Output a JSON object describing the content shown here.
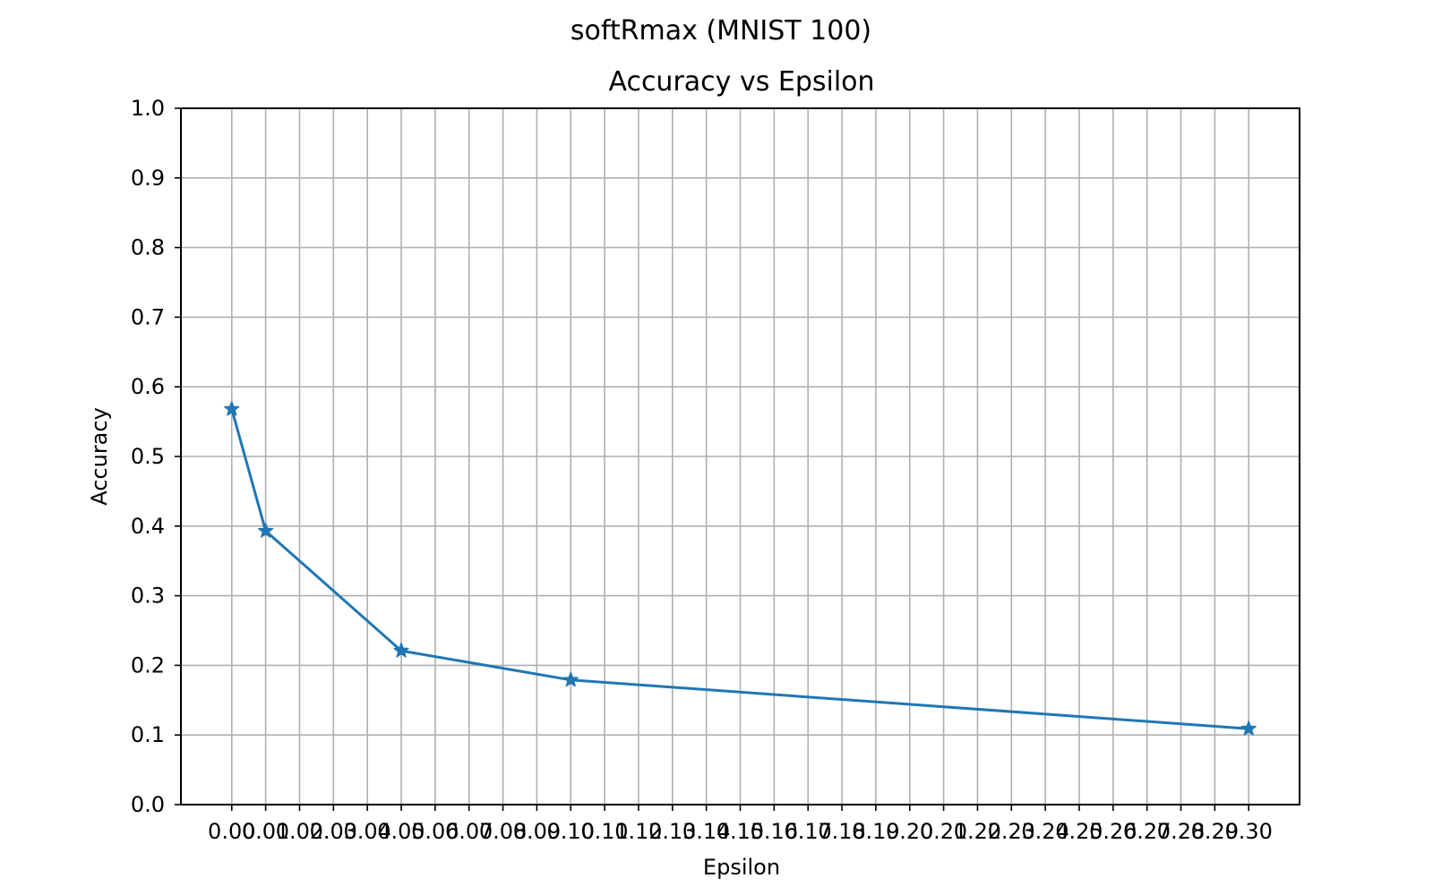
{
  "chart_data": {
    "type": "line",
    "suptitle": "softRmax (MNIST 100)",
    "title": "Accuracy vs Epsilon",
    "xlabel": "Epsilon",
    "ylabel": "Accuracy",
    "ylim": [
      0,
      1.0
    ],
    "xlim": [
      -0.015,
      0.315
    ],
    "grid": true,
    "x_ticks": [
      0.0,
      0.01,
      0.02,
      0.03,
      0.04,
      0.05,
      0.06,
      0.07,
      0.08,
      0.09,
      0.1,
      0.11,
      0.12,
      0.13,
      0.14,
      0.15,
      0.16,
      0.17,
      0.18,
      0.19,
      0.2,
      0.21,
      0.22,
      0.23,
      0.24,
      0.25,
      0.26,
      0.27,
      0.28,
      0.29,
      0.3
    ],
    "x_tick_labels": [
      "0.00",
      "0.01",
      "0.02",
      "0.03",
      "0.04",
      "0.05",
      "0.06",
      "0.07",
      "0.08",
      "0.09",
      "0.10",
      "0.11",
      "0.12",
      "0.13",
      "0.14",
      "0.15",
      "0.16",
      "0.17",
      "0.18",
      "0.19",
      "0.20",
      "0.21",
      "0.22",
      "0.23",
      "0.24",
      "0.25",
      "0.26",
      "0.27",
      "0.28",
      "0.29",
      "0.30"
    ],
    "y_ticks": [
      0.0,
      0.1,
      0.2,
      0.3,
      0.4,
      0.5,
      0.6,
      0.7,
      0.8,
      0.9,
      1.0
    ],
    "y_tick_labels": [
      "0.0",
      "0.1",
      "0.2",
      "0.3",
      "0.4",
      "0.5",
      "0.6",
      "0.7",
      "0.8",
      "0.9",
      "1.0"
    ],
    "series": [
      {
        "color": "#1f77b4",
        "marker": "star",
        "x": [
          0.0,
          0.01,
          0.05,
          0.1,
          0.3
        ],
        "y": [
          0.568,
          0.393,
          0.221,
          0.179,
          0.109
        ]
      }
    ]
  }
}
